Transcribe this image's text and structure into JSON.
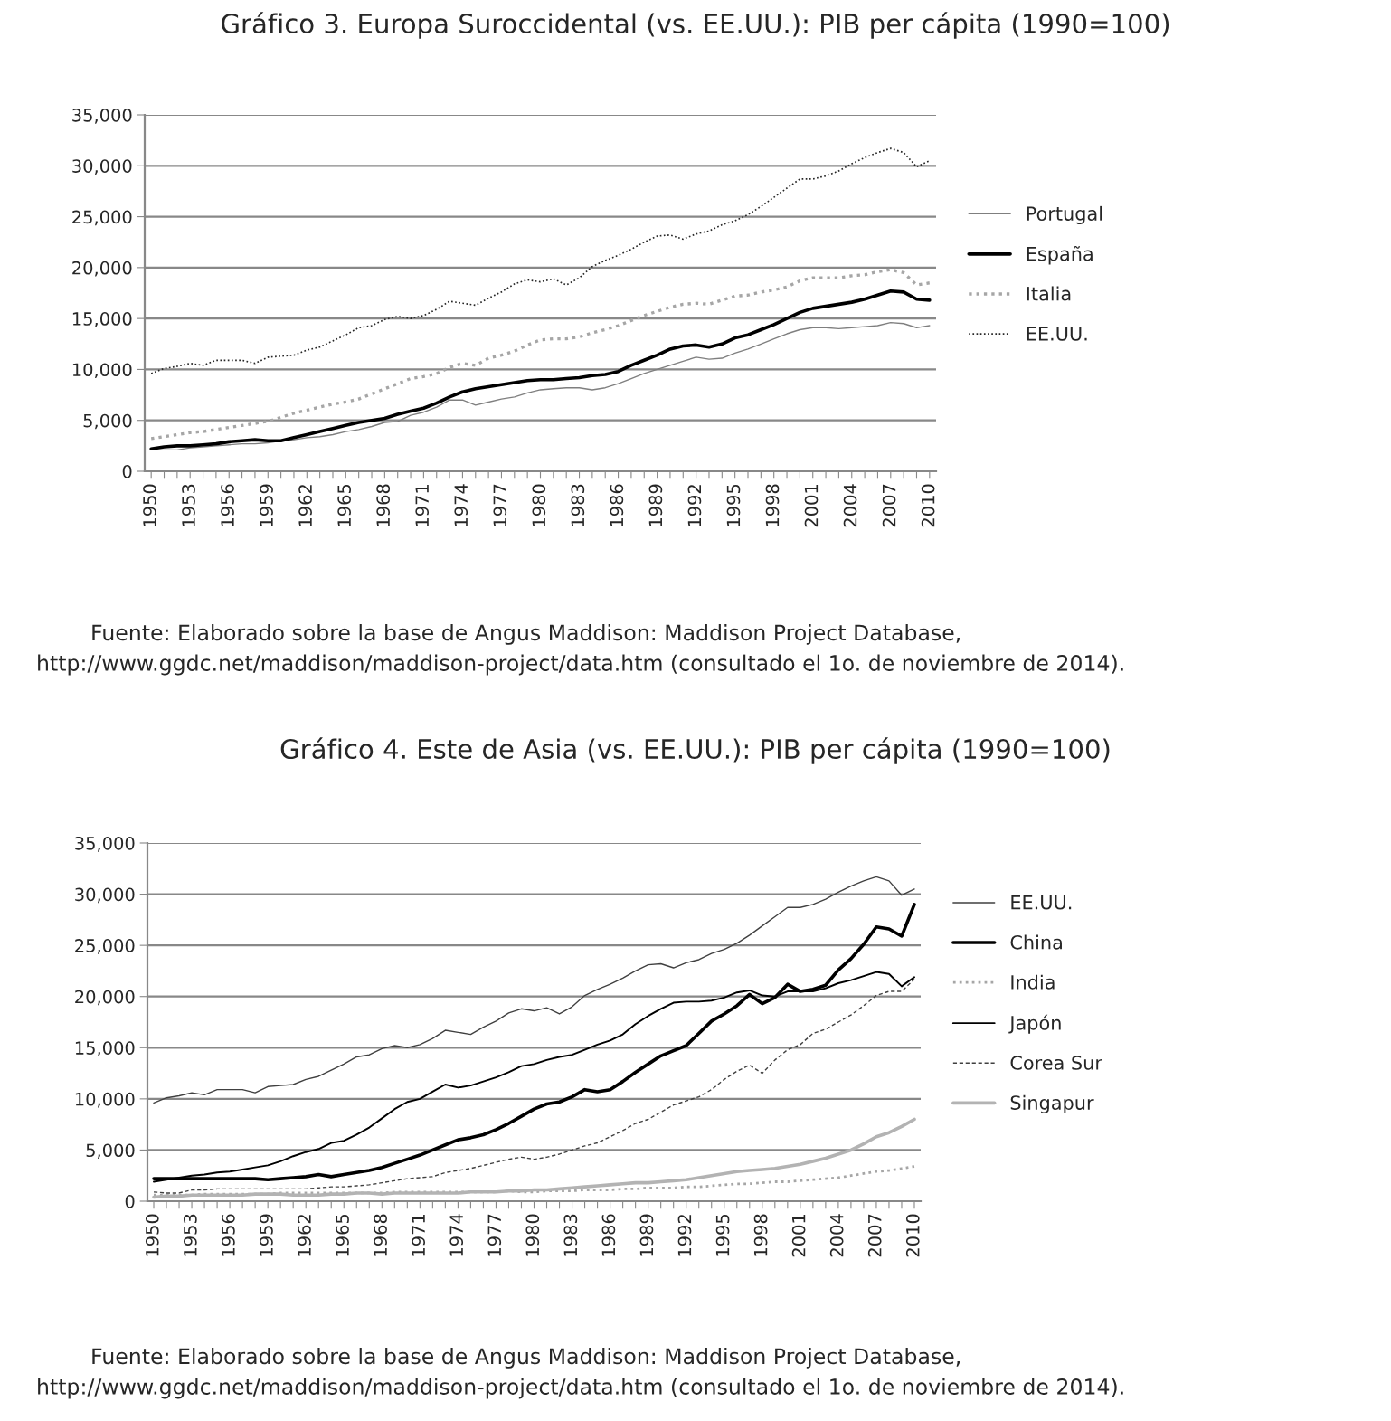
{
  "chart_data": [
    {
      "type": "line",
      "title": "Gráfico 3. Europa Suroccidental (vs. EE.UU.): PIB per cápita (1990=100)",
      "categories": [
        "1950",
        null,
        null,
        "1953",
        null,
        null,
        "1956",
        null,
        null,
        "1959",
        null,
        null,
        "1962",
        null,
        null,
        "1965",
        null,
        null,
        "1968",
        null,
        null,
        "1971",
        null,
        null,
        "1974",
        null,
        null,
        "1977",
        null,
        null,
        "1980",
        null,
        null,
        "1983",
        null,
        null,
        "1986",
        null,
        null,
        "1989",
        null,
        null,
        "1992",
        null,
        null,
        "1995",
        null,
        null,
        "1998",
        null,
        null,
        "2001",
        null,
        null,
        "2004",
        null,
        null,
        "2007",
        null,
        null,
        "2010"
      ],
      "ylim": [
        0,
        35000
      ],
      "yticks": [
        0,
        {
          "value": 5000,
          "label": "5,000"
        },
        {
          "value": 10000,
          "label": "10,000"
        },
        {
          "value": 15000,
          "label": "15,000"
        },
        {
          "value": 20000,
          "label": "20,000"
        },
        {
          "value": 25000,
          "label": "25,000"
        },
        {
          "value": 30000,
          "label": "30,000"
        },
        {
          "value": 35000,
          "label": "35,000"
        }
      ],
      "grid": "y",
      "legend": "right",
      "marker": "none",
      "series": [
        {
          "name": "Portugal",
          "color": "#7f7f7f",
          "line_style": "solid",
          "values": [
            2100,
            2100,
            2100,
            2300,
            2400,
            2500,
            2600,
            2700,
            2700,
            2800,
            3000,
            3100,
            3300,
            3400,
            3600,
            3900,
            4100,
            4400,
            4800,
            4900,
            5500,
            5800,
            6300,
            7000,
            7000,
            6500,
            6800,
            7100,
            7300,
            7700,
            8000,
            8100,
            8200,
            8200,
            8000,
            8200,
            8600,
            9100,
            9600,
            10000,
            10400,
            10800,
            11200,
            11000,
            11100,
            11600,
            12000,
            12500,
            13000,
            13500,
            13900,
            14100,
            14100,
            14000,
            14100,
            14200,
            14300,
            14600,
            14500,
            14100,
            14300
          ]
        },
        {
          "name": "España",
          "color": "#000000",
          "line_style": "solid",
          "values": [
            2200,
            2400,
            2500,
            2500,
            2600,
            2700,
            2900,
            3000,
            3100,
            3000,
            3000,
            3300,
            3600,
            3900,
            4200,
            4500,
            4800,
            5000,
            5200,
            5600,
            5900,
            6200,
            6700,
            7300,
            7800,
            8100,
            8300,
            8500,
            8700,
            8900,
            9000,
            9000,
            9100,
            9200,
            9400,
            9500,
            9800,
            10400,
            10900,
            11400,
            12000,
            12300,
            12400,
            12200,
            12500,
            13100,
            13400,
            13900,
            14400,
            15000,
            15600,
            16000,
            16200,
            16400,
            16600,
            16900,
            17300,
            17700,
            17600,
            16900,
            16800
          ]
        },
        {
          "name": "Italia",
          "color": "#a6a6a6",
          "line_style": "dotted",
          "values": [
            3200,
            3400,
            3600,
            3800,
            3900,
            4100,
            4300,
            4500,
            4700,
            4900,
            5300,
            5700,
            6000,
            6300,
            6600,
            6800,
            7100,
            7600,
            8100,
            8600,
            9100,
            9300,
            9600,
            10200,
            10600,
            10400,
            11100,
            11400,
            11800,
            12400,
            12900,
            13000,
            13000,
            13200,
            13600,
            13900,
            14300,
            14800,
            15300,
            15700,
            16100,
            16400,
            16500,
            16400,
            16800,
            17200,
            17300,
            17600,
            17800,
            18100,
            18700,
            19000,
            19000,
            19000,
            19200,
            19300,
            19600,
            19800,
            19500,
            18300,
            18500
          ]
        },
        {
          "name": "EE.UU.",
          "color": "#262626",
          "line_style": "dotted",
          "values": [
            9600,
            10100,
            10300,
            10600,
            10400,
            10900,
            10900,
            10900,
            10600,
            11200,
            11300,
            11400,
            11900,
            12200,
            12800,
            13400,
            14100,
            14300,
            14900,
            15200,
            15000,
            15300,
            15900,
            16700,
            16500,
            16300,
            17000,
            17600,
            18400,
            18800,
            18600,
            18900,
            18300,
            19000,
            20100,
            20700,
            21200,
            21800,
            22500,
            23100,
            23200,
            22800,
            23300,
            23600,
            24200,
            24600,
            25200,
            26000,
            26900,
            27800,
            28700,
            28700,
            29000,
            29500,
            30200,
            30800,
            31300,
            31700,
            31300,
            29900,
            30500
          ]
        }
      ],
      "annotations": [
        "Fuente: Elaborado sobre la base de Angus Maddison: Maddison Project Database, http://www.ggdc.net/maddison/maddison-project/data.htm (consultado el 1o. de noviembre de 2014)."
      ]
    },
    {
      "type": "line",
      "title": "Gráfico 4. Este de Asia (vs. EE.UU.): PIB per cápita (1990=100)",
      "categories": [
        "1950",
        null,
        null,
        "1953",
        null,
        null,
        "1956",
        null,
        null,
        "1959",
        null,
        null,
        "1962",
        null,
        null,
        "1965",
        null,
        null,
        "1968",
        null,
        null,
        "1971",
        null,
        null,
        "1974",
        null,
        null,
        "1977",
        null,
        null,
        "1980",
        null,
        null,
        "1983",
        null,
        null,
        "1986",
        null,
        null,
        "1989",
        null,
        null,
        "1992",
        null,
        null,
        "1995",
        null,
        null,
        "1998",
        null,
        null,
        "2001",
        null,
        null,
        "2004",
        null,
        null,
        "2007",
        null,
        null,
        "2010"
      ],
      "ylim": [
        0,
        35000
      ],
      "yticks": [
        0,
        {
          "value": 5000,
          "label": "5,000"
        },
        {
          "value": 10000,
          "label": "10,000"
        },
        {
          "value": 15000,
          "label": "15,000"
        },
        {
          "value": 20000,
          "label": "20,000"
        },
        {
          "value": 25000,
          "label": "25,000"
        },
        {
          "value": 30000,
          "label": "30,000"
        },
        {
          "value": 35000,
          "label": "35,000"
        }
      ],
      "grid": "y",
      "legend": "right",
      "marker": "none",
      "series": [
        {
          "name": "EE.UU.",
          "color": "#404040",
          "line_style": "solid",
          "values": [
            9600,
            10100,
            10300,
            10600,
            10400,
            10900,
            10900,
            10900,
            10600,
            11200,
            11300,
            11400,
            11900,
            12200,
            12800,
            13400,
            14100,
            14300,
            14900,
            15200,
            15000,
            15300,
            15900,
            16700,
            16500,
            16300,
            17000,
            17600,
            18400,
            18800,
            18600,
            18900,
            18300,
            19000,
            20100,
            20700,
            21200,
            21800,
            22500,
            23100,
            23200,
            22800,
            23300,
            23600,
            24200,
            24600,
            25200,
            26000,
            26900,
            27800,
            28700,
            28700,
            29000,
            29500,
            30200,
            30800,
            31300,
            31700,
            31300,
            29900,
            30500
          ]
        },
        {
          "name": "China",
          "color": "#000000",
          "line_style": "solid",
          "values": [
            2200,
            2200,
            2200,
            2200,
            2200,
            2200,
            2200,
            2200,
            2200,
            2100,
            2200,
            2300,
            2400,
            2600,
            2400,
            2600,
            2800,
            3000,
            3300,
            3700,
            4100,
            4500,
            5000,
            5500,
            6000,
            6200,
            6500,
            7000,
            7600,
            8300,
            9000,
            9500,
            9700,
            10200,
            10900,
            10700,
            10900,
            11700,
            12600,
            13400,
            14200,
            14700,
            15200,
            16400,
            17600,
            18300,
            19100,
            20200,
            19300,
            19900,
            21200,
            20500,
            20700,
            21100,
            22600,
            23700,
            25100,
            26800,
            26600,
            25900,
            29000
          ]
        },
        {
          "name": "India",
          "color": "#a6a6a6",
          "line_style": "dotted",
          "values": [
            600,
            600,
            600,
            600,
            700,
            700,
            700,
            700,
            700,
            700,
            800,
            800,
            800,
            800,
            800,
            800,
            800,
            800,
            800,
            900,
            900,
            900,
            900,
            900,
            900,
            900,
            900,
            900,
            1000,
            900,
            900,
            1000,
            1000,
            1000,
            1100,
            1100,
            1100,
            1200,
            1200,
            1300,
            1300,
            1300,
            1400,
            1400,
            1500,
            1600,
            1700,
            1700,
            1800,
            1900,
            1900,
            2000,
            2100,
            2200,
            2300,
            2500,
            2700,
            2900,
            3000,
            3200,
            3400
          ]
        },
        {
          "name": "Japón",
          "color": "#000000",
          "line_style": "solid",
          "values": [
            1900,
            2100,
            2300,
            2500,
            2600,
            2800,
            2900,
            3100,
            3300,
            3500,
            3900,
            4400,
            4800,
            5100,
            5700,
            5900,
            6500,
            7200,
            8100,
            9000,
            9700,
            10000,
            10700,
            11400,
            11100,
            11300,
            11700,
            12100,
            12600,
            13200,
            13400,
            13800,
            14100,
            14300,
            14800,
            15300,
            15700,
            16300,
            17300,
            18100,
            18800,
            19400,
            19500,
            19500,
            19600,
            19900,
            20400,
            20600,
            20100,
            20000,
            20500,
            20500,
            20500,
            20800,
            21300,
            21600,
            22000,
            22400,
            22200,
            21000,
            21900
          ]
        },
        {
          "name": "Corea Sur",
          "color": "#404040",
          "line_style": "dashed",
          "values": [
            900,
            800,
            800,
            1100,
            1100,
            1200,
            1200,
            1200,
            1200,
            1200,
            1200,
            1200,
            1200,
            1300,
            1400,
            1400,
            1500,
            1600,
            1800,
            2000,
            2200,
            2300,
            2400,
            2800,
            3000,
            3200,
            3500,
            3800,
            4100,
            4300,
            4100,
            4300,
            4600,
            5000,
            5400,
            5700,
            6300,
            6900,
            7600,
            8000,
            8700,
            9400,
            9800,
            10200,
            10900,
            11900,
            12700,
            13300,
            12500,
            13800,
            14800,
            15300,
            16400,
            16800,
            17500,
            18200,
            19100,
            20100,
            20500,
            20500,
            21700
          ]
        },
        {
          "name": "Singapur",
          "color": "#b3b3b3",
          "line_style": "solid",
          "values": [
            400,
            500,
            500,
            600,
            600,
            600,
            600,
            600,
            700,
            700,
            700,
            600,
            600,
            600,
            700,
            700,
            800,
            800,
            700,
            800,
            800,
            800,
            800,
            800,
            800,
            900,
            900,
            900,
            1000,
            1000,
            1100,
            1100,
            1200,
            1300,
            1400,
            1500,
            1600,
            1700,
            1800,
            1800,
            1900,
            2000,
            2100,
            2300,
            2500,
            2700,
            2900,
            3000,
            3100,
            3200,
            3400,
            3600,
            3900,
            4200,
            4600,
            5000,
            5600,
            6300,
            6700,
            7300,
            8000
          ]
        }
      ],
      "annotations": [
        "Fuente: Elaborado sobre la base de Angus Maddison: Maddison Project Database, http://www.ggdc.net/maddison/maddison-project/data.htm (consultado el 1o. de noviembre de 2014)."
      ]
    }
  ]
}
